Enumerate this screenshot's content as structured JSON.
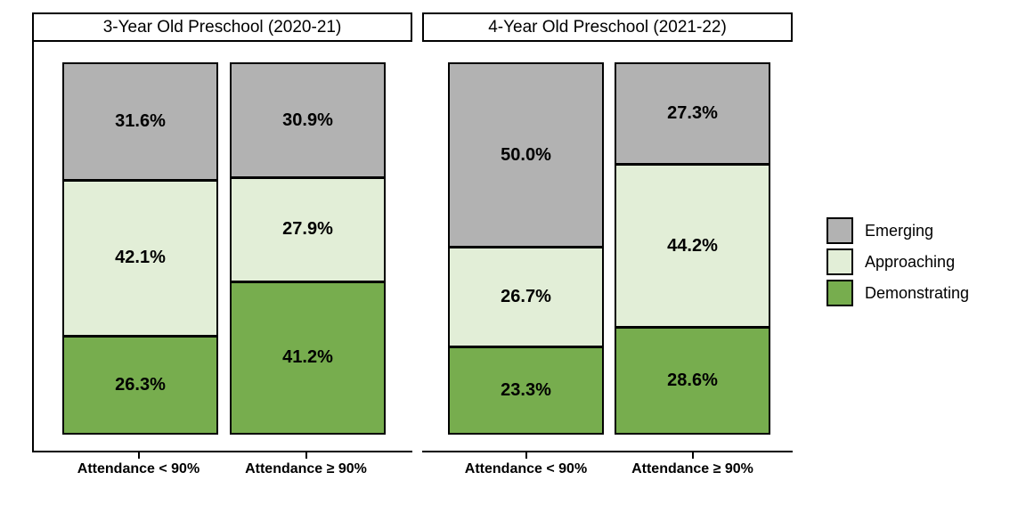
{
  "chart_data": {
    "type": "bar",
    "stacked": true,
    "orientation": "vertical",
    "unit": "percent",
    "ylim": [
      0,
      100
    ],
    "grid": false,
    "colors": {
      "Emerging": "#b2b2b2",
      "Approaching": "#e2eed7",
      "Demonstrating": "#77ad4e",
      "border": "#000000",
      "background": "#ffffff"
    },
    "legend": {
      "position": "right",
      "entries": [
        {
          "label": "Emerging",
          "color": "#b2b2b2"
        },
        {
          "label": "Approaching",
          "color": "#e2eed7"
        },
        {
          "label": "Demonstrating",
          "color": "#77ad4e"
        }
      ]
    },
    "panels": [
      {
        "title": "3-Year Old Preschool (2020-21)",
        "bars": [
          {
            "category": "Attendance < 90%",
            "segments": [
              {
                "level": "Emerging",
                "value": 31.6,
                "label": "31.6%"
              },
              {
                "level": "Approaching",
                "value": 42.1,
                "label": "42.1%"
              },
              {
                "level": "Demonstrating",
                "value": 26.3,
                "label": "26.3%"
              }
            ]
          },
          {
            "category": "Attendance ≥ 90%",
            "segments": [
              {
                "level": "Emerging",
                "value": 30.9,
                "label": "30.9%"
              },
              {
                "level": "Approaching",
                "value": 27.9,
                "label": "27.9%"
              },
              {
                "level": "Demonstrating",
                "value": 41.2,
                "label": "41.2%"
              }
            ]
          }
        ]
      },
      {
        "title": "4-Year Old Preschool (2021-22)",
        "bars": [
          {
            "category": "Attendance < 90%",
            "segments": [
              {
                "level": "Emerging",
                "value": 50.0,
                "label": "50.0%"
              },
              {
                "level": "Approaching",
                "value": 26.7,
                "label": "26.7%"
              },
              {
                "level": "Demonstrating",
                "value": 23.3,
                "label": "23.3%"
              }
            ]
          },
          {
            "category": "Attendance ≥ 90%",
            "segments": [
              {
                "level": "Emerging",
                "value": 27.3,
                "label": "27.3%"
              },
              {
                "level": "Approaching",
                "value": 44.2,
                "label": "44.2%"
              },
              {
                "level": "Demonstrating",
                "value": 28.6,
                "label": "28.6%"
              }
            ]
          }
        ]
      }
    ]
  }
}
